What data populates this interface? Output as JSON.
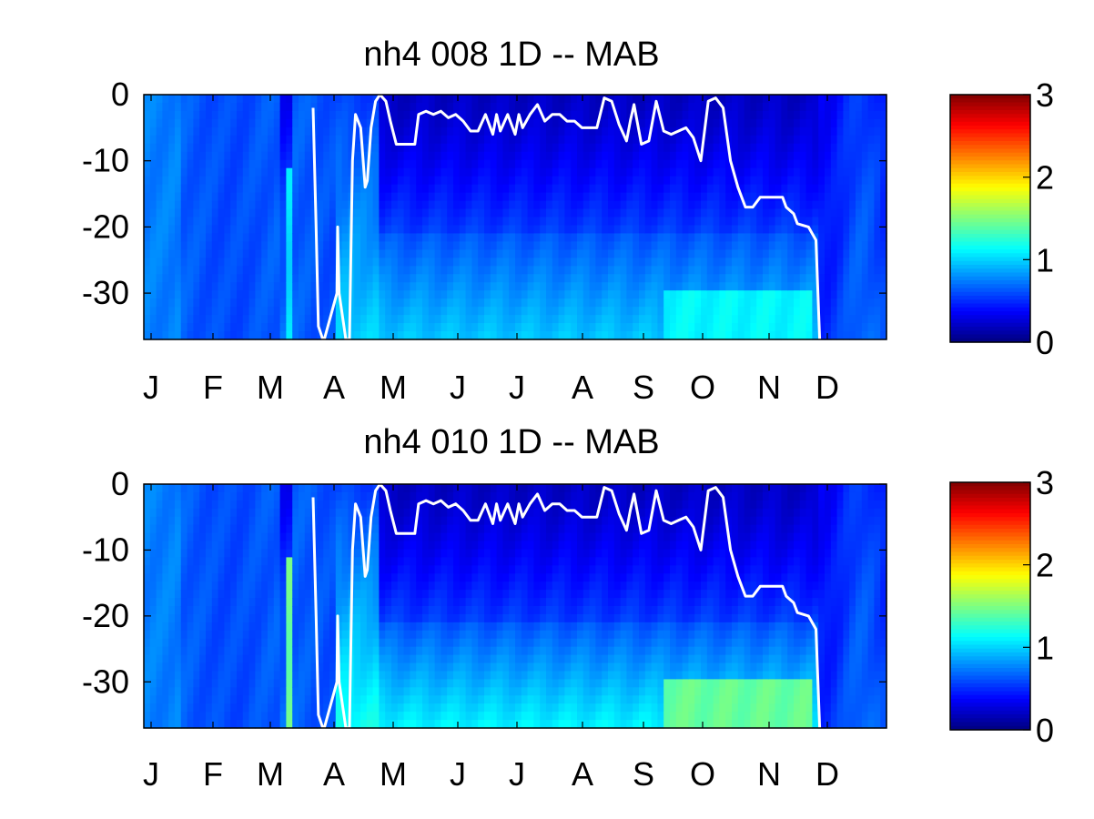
{
  "chart_data": [
    {
      "type": "heatmap",
      "title": "nh4  008 1D   -- MAB",
      "xlabel": "",
      "ylabel": "",
      "x_tick_labels": [
        "J",
        "F",
        "M",
        "A",
        "M",
        "J",
        "J",
        "A",
        "S",
        "O",
        "N",
        "D"
      ],
      "y_ticks": [
        0,
        -10,
        -20,
        -30
      ],
      "ylim": [
        -37,
        0
      ],
      "colorbar": {
        "ticks": [
          0,
          1,
          2,
          3
        ],
        "range": [
          0,
          3
        ],
        "colormap": "jet"
      },
      "overlay_line": {
        "color": "#ffffff",
        "points": [
          [
            0.228,
            -2
          ],
          [
            0.232,
            -20
          ],
          [
            0.235,
            -35
          ],
          [
            0.241,
            -37
          ],
          [
            0.243,
            -37
          ],
          [
            0.26,
            -30
          ],
          [
            0.261,
            -20
          ],
          [
            0.263,
            -30
          ],
          [
            0.272,
            -37
          ],
          [
            0.277,
            -37
          ],
          [
            0.278,
            -30
          ],
          [
            0.281,
            -10
          ],
          [
            0.285,
            -3
          ],
          [
            0.292,
            -5
          ],
          [
            0.298,
            -14
          ],
          [
            0.301,
            -13
          ],
          [
            0.306,
            -5
          ],
          [
            0.312,
            -1
          ],
          [
            0.318,
            0
          ],
          [
            0.326,
            -1
          ],
          [
            0.332,
            -4
          ],
          [
            0.34,
            -7.5
          ],
          [
            0.365,
            -7.5
          ],
          [
            0.37,
            -3
          ],
          [
            0.38,
            -2.5
          ],
          [
            0.39,
            -3
          ],
          [
            0.4,
            -2.5
          ],
          [
            0.41,
            -3.5
          ],
          [
            0.42,
            -3
          ],
          [
            0.43,
            -4
          ],
          [
            0.44,
            -5.5
          ],
          [
            0.45,
            -5.5
          ],
          [
            0.46,
            -3
          ],
          [
            0.47,
            -6
          ],
          [
            0.475,
            -3
          ],
          [
            0.48,
            -5.5
          ],
          [
            0.49,
            -3
          ],
          [
            0.5,
            -6
          ],
          [
            0.505,
            -3
          ],
          [
            0.51,
            -5
          ],
          [
            0.52,
            -3
          ],
          [
            0.53,
            -1.5
          ],
          [
            0.54,
            -4
          ],
          [
            0.55,
            -3
          ],
          [
            0.56,
            -3
          ],
          [
            0.57,
            -4
          ],
          [
            0.58,
            -4
          ],
          [
            0.59,
            -5
          ],
          [
            0.6,
            -5
          ],
          [
            0.61,
            -5
          ],
          [
            0.62,
            -0.5
          ],
          [
            0.63,
            -1
          ],
          [
            0.64,
            -4.5
          ],
          [
            0.65,
            -7
          ],
          [
            0.655,
            -4
          ],
          [
            0.66,
            -1.5
          ],
          [
            0.67,
            -7.5
          ],
          [
            0.68,
            -7
          ],
          [
            0.69,
            -1
          ],
          [
            0.7,
            -5.5
          ],
          [
            0.71,
            -6
          ],
          [
            0.72,
            -5.5
          ],
          [
            0.73,
            -5
          ],
          [
            0.74,
            -6.5
          ],
          [
            0.75,
            -10
          ],
          [
            0.76,
            -1
          ],
          [
            0.77,
            -0.5
          ],
          [
            0.78,
            -2
          ],
          [
            0.79,
            -10
          ],
          [
            0.8,
            -14
          ],
          [
            0.81,
            -17
          ],
          [
            0.82,
            -17
          ],
          [
            0.83,
            -15.5
          ],
          [
            0.86,
            -15.5
          ],
          [
            0.865,
            -17
          ],
          [
            0.875,
            -18
          ],
          [
            0.88,
            -19.5
          ],
          [
            0.895,
            -20
          ],
          [
            0.9,
            -21
          ],
          [
            0.905,
            -22
          ],
          [
            0.91,
            -37
          ]
        ]
      }
    },
    {
      "type": "heatmap",
      "title": "nh4  010 1D   -- MAB",
      "xlabel": "",
      "ylabel": "",
      "x_tick_labels": [
        "J",
        "F",
        "M",
        "A",
        "M",
        "J",
        "J",
        "A",
        "S",
        "O",
        "N",
        "D"
      ],
      "y_ticks": [
        0,
        -10,
        -20,
        -30
      ],
      "ylim": [
        -37,
        0
      ],
      "colorbar": {
        "ticks": [
          0,
          1,
          2,
          3
        ],
        "range": [
          0,
          3
        ],
        "colormap": "jet"
      },
      "overlay_line": {
        "color": "#ffffff",
        "points": [
          [
            0.228,
            -2
          ],
          [
            0.232,
            -20
          ],
          [
            0.235,
            -35
          ],
          [
            0.241,
            -37
          ],
          [
            0.243,
            -37
          ],
          [
            0.26,
            -30
          ],
          [
            0.261,
            -20
          ],
          [
            0.263,
            -30
          ],
          [
            0.272,
            -37
          ],
          [
            0.277,
            -37
          ],
          [
            0.278,
            -30
          ],
          [
            0.281,
            -10
          ],
          [
            0.285,
            -3
          ],
          [
            0.292,
            -5
          ],
          [
            0.298,
            -14
          ],
          [
            0.301,
            -13
          ],
          [
            0.306,
            -5
          ],
          [
            0.312,
            -1
          ],
          [
            0.318,
            0
          ],
          [
            0.326,
            -1
          ],
          [
            0.332,
            -4
          ],
          [
            0.34,
            -7.5
          ],
          [
            0.365,
            -7.5
          ],
          [
            0.37,
            -3
          ],
          [
            0.38,
            -2.5
          ],
          [
            0.39,
            -3
          ],
          [
            0.4,
            -2.5
          ],
          [
            0.41,
            -3.5
          ],
          [
            0.42,
            -3
          ],
          [
            0.43,
            -4
          ],
          [
            0.44,
            -5.5
          ],
          [
            0.45,
            -5.5
          ],
          [
            0.46,
            -3
          ],
          [
            0.47,
            -6
          ],
          [
            0.475,
            -3
          ],
          [
            0.48,
            -5.5
          ],
          [
            0.49,
            -3
          ],
          [
            0.5,
            -6
          ],
          [
            0.505,
            -3
          ],
          [
            0.51,
            -5
          ],
          [
            0.52,
            -3
          ],
          [
            0.53,
            -1.5
          ],
          [
            0.54,
            -4
          ],
          [
            0.55,
            -3
          ],
          [
            0.56,
            -3
          ],
          [
            0.57,
            -4
          ],
          [
            0.58,
            -4
          ],
          [
            0.59,
            -5
          ],
          [
            0.6,
            -5
          ],
          [
            0.61,
            -5
          ],
          [
            0.62,
            -0.5
          ],
          [
            0.63,
            -1
          ],
          [
            0.64,
            -4.5
          ],
          [
            0.65,
            -7
          ],
          [
            0.655,
            -4
          ],
          [
            0.66,
            -1.5
          ],
          [
            0.67,
            -7.5
          ],
          [
            0.68,
            -7
          ],
          [
            0.69,
            -1
          ],
          [
            0.7,
            -5.5
          ],
          [
            0.71,
            -6
          ],
          [
            0.72,
            -5.5
          ],
          [
            0.73,
            -5
          ],
          [
            0.74,
            -6.5
          ],
          [
            0.75,
            -10
          ],
          [
            0.76,
            -1
          ],
          [
            0.77,
            -0.5
          ],
          [
            0.78,
            -2
          ],
          [
            0.79,
            -10
          ],
          [
            0.8,
            -14
          ],
          [
            0.81,
            -17
          ],
          [
            0.82,
            -17
          ],
          [
            0.83,
            -15.5
          ],
          [
            0.86,
            -15.5
          ],
          [
            0.865,
            -17
          ],
          [
            0.875,
            -18
          ],
          [
            0.88,
            -19.5
          ],
          [
            0.895,
            -20
          ],
          [
            0.9,
            -21
          ],
          [
            0.905,
            -22
          ],
          [
            0.91,
            -37
          ]
        ]
      }
    }
  ]
}
